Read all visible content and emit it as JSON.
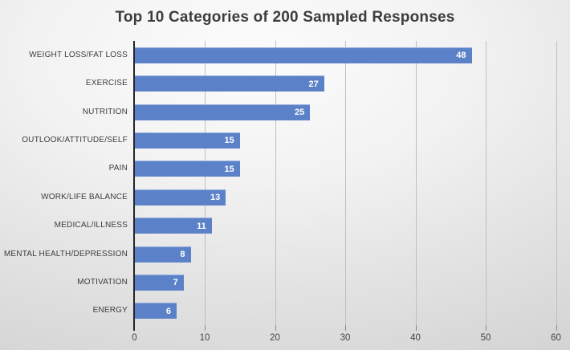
{
  "chart_data": {
    "type": "bar",
    "orientation": "horizontal",
    "title": "Top 10 Categories of 200 Sampled Responses",
    "categories": [
      "WEIGHT LOSS/FAT LOSS",
      "EXERCISE",
      "NUTRITION",
      "OUTLOOK/ATTITUDE/SELF",
      "PAIN",
      "WORK/LIFE BALANCE",
      "MEDICAL/ILLNESS",
      "MENTAL HEALTH/DEPRESSION",
      "MOTIVATION",
      "ENERGY"
    ],
    "values": [
      48,
      27,
      25,
      15,
      15,
      13,
      11,
      8,
      7,
      6
    ],
    "data_labels": [
      "48",
      "27",
      "25",
      "15",
      "15",
      "13",
      "11",
      "8",
      "7",
      "6"
    ],
    "xlabel": "",
    "ylabel": "",
    "xlim": [
      0,
      60
    ],
    "x_ticks": [
      0,
      10,
      20,
      30,
      40,
      50,
      60
    ],
    "x_tick_labels": [
      "0",
      "10",
      "20",
      "30",
      "40",
      "50",
      "60"
    ],
    "grid": "vertical-gridlines-on",
    "legend": "none",
    "colors": {
      "bar_fill": "#5b82c8",
      "title_text": "#3d3d3d",
      "category_text": "#3c3c3c",
      "tick_text": "#444444",
      "value_label_text": "#ffffff",
      "gridline": "#bfbfbf",
      "axis_line": "#262626",
      "background_center": "#fcfcfc",
      "background_edge": "#c7c7c7"
    }
  }
}
